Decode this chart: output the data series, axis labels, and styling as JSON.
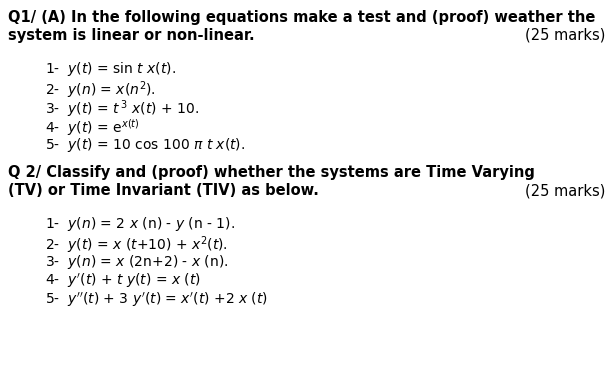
{
  "background_color": "#ffffff",
  "figsize": [
    6.13,
    3.77
  ],
  "dpi": 100,
  "q1_line1": "Q1/ (A) In the following equations make a test and (proof) weather the",
  "q1_line2": "system is linear or non-linear.",
  "q1_marks": "(25 marks)",
  "q2_line1": "Q 2/ Classify and (proof) whether the systems are Time Varying",
  "q2_line2": "(TV) or Time Invariant (TIV) as below.",
  "q2_marks": "(25 marks)",
  "q1_items_plain": [
    "1-  y(t) = sin t x(t).",
    "2-  y(n) = x(n",
    "3-  y(t) = t",
    "4-  y(t) = e",
    "5-  y(t) = 10 cos 100 π t x(t)."
  ],
  "q2_items_plain": [
    "1-  y(n) = 2 x (n) - y (n - 1).",
    "2-  y(t) = x (t+10) + x",
    "3-  y(n) = x (2n+2) - x (n).",
    "4-  y’(t) + t y(t) = x (t)",
    "5-  y’’(t) + 3 y’(t) = x’(t) +2 x (t)"
  ],
  "fontsize": 10.5,
  "item_fontsize": 10.0
}
